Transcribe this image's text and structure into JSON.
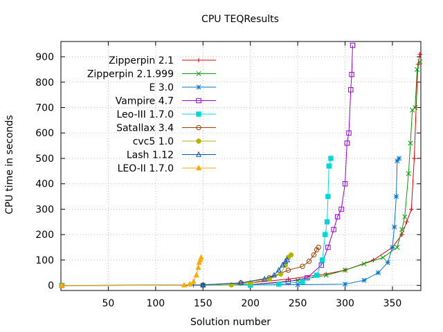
{
  "chart_data": {
    "type": "line",
    "title": "CPU TEQResults",
    "xlabel": "Solution number",
    "ylabel": "CPU time in seconds",
    "xlim": [
      0,
      380
    ],
    "ylim": [
      -20,
      960
    ],
    "xticks": [
      50,
      100,
      150,
      200,
      250,
      300,
      350
    ],
    "yticks": [
      0,
      100,
      200,
      300,
      400,
      500,
      600,
      700,
      800,
      900
    ],
    "grid": true,
    "legend_position": "top-left",
    "series": [
      {
        "name": "Zipperpin 2.1",
        "color": "#dc0000",
        "marker": "plus",
        "points": [
          [
            1,
            0
          ],
          [
            140,
            1
          ],
          [
            200,
            10
          ],
          [
            240,
            25
          ],
          [
            280,
            45
          ],
          [
            300,
            60
          ],
          [
            330,
            100
          ],
          [
            350,
            150
          ],
          [
            360,
            200
          ],
          [
            365,
            250
          ],
          [
            370,
            300
          ],
          [
            373,
            500
          ],
          [
            375,
            700
          ],
          [
            377,
            870
          ],
          [
            379,
            910
          ]
        ]
      },
      {
        "name": "Zipperpin 2.1.999",
        "color": "#009e00",
        "marker": "cross",
        "points": [
          [
            1,
            0
          ],
          [
            150,
            1
          ],
          [
            200,
            3
          ],
          [
            250,
            20
          ],
          [
            280,
            40
          ],
          [
            300,
            60
          ],
          [
            320,
            85
          ],
          [
            340,
            110
          ],
          [
            355,
            150
          ],
          [
            360,
            220
          ],
          [
            363,
            270
          ],
          [
            367,
            440
          ],
          [
            369,
            560
          ],
          [
            371,
            690
          ],
          [
            374,
            700
          ],
          [
            376,
            850
          ],
          [
            379,
            880
          ]
        ]
      },
      {
        "name": "E 3.0",
        "color": "#0072d0",
        "marker": "star",
        "points": [
          [
            1,
            0
          ],
          [
            150,
            1
          ],
          [
            250,
            3
          ],
          [
            300,
            5
          ],
          [
            320,
            20
          ],
          [
            335,
            50
          ],
          [
            345,
            90
          ],
          [
            350,
            150
          ],
          [
            352,
            230
          ],
          [
            354,
            350
          ],
          [
            355,
            490
          ],
          [
            357,
            500
          ]
        ]
      },
      {
        "name": "Vampire 4.7",
        "color": "#9400d3",
        "marker": "square",
        "points": [
          [
            1,
            0
          ],
          [
            200,
            2
          ],
          [
            240,
            15
          ],
          [
            260,
            30
          ],
          [
            275,
            80
          ],
          [
            282,
            150
          ],
          [
            288,
            220
          ],
          [
            292,
            270
          ],
          [
            296,
            300
          ],
          [
            300,
            400
          ],
          [
            302,
            560
          ],
          [
            304,
            600
          ],
          [
            306,
            770
          ],
          [
            307,
            830
          ],
          [
            308,
            945
          ]
        ]
      },
      {
        "name": "Leo-III 1.7.0",
        "color": "#00d8d8",
        "marker": "fsquare",
        "points": [
          [
            1,
            0
          ],
          [
            200,
            1
          ],
          [
            230,
            5
          ],
          [
            255,
            15
          ],
          [
            270,
            40
          ],
          [
            276,
            100
          ],
          [
            279,
            200
          ],
          [
            281,
            250
          ],
          [
            282,
            350
          ],
          [
            283,
            470
          ],
          [
            285,
            500
          ]
        ]
      },
      {
        "name": "Satallax 3.4",
        "color": "#a03c00",
        "marker": "circle",
        "points": [
          [
            1,
            0
          ],
          [
            150,
            1
          ],
          [
            190,
            10
          ],
          [
            220,
            30
          ],
          [
            240,
            60
          ],
          [
            255,
            75
          ],
          [
            262,
            95
          ],
          [
            267,
            120
          ],
          [
            270,
            140
          ],
          [
            272,
            150
          ]
        ]
      },
      {
        "name": "cvc5 1.0",
        "color": "#b4b400",
        "marker": "fcircle",
        "points": [
          [
            1,
            0
          ],
          [
            180,
            2
          ],
          [
            200,
            10
          ],
          [
            220,
            25
          ],
          [
            232,
            45
          ],
          [
            237,
            80
          ],
          [
            240,
            110
          ],
          [
            243,
            120
          ]
        ]
      },
      {
        "name": "Lash 1.12",
        "color": "#0052b8",
        "marker": "triangle",
        "points": [
          [
            1,
            0
          ],
          [
            150,
            2
          ],
          [
            190,
            10
          ],
          [
            215,
            25
          ],
          [
            225,
            40
          ],
          [
            230,
            60
          ],
          [
            234,
            80
          ],
          [
            237,
            95
          ],
          [
            239,
            100
          ]
        ]
      },
      {
        "name": "LEO-II 1.7.0",
        "color": "#ffaa00",
        "marker": "ftriangle",
        "points": [
          [
            1,
            0
          ],
          [
            130,
            1
          ],
          [
            136,
            5
          ],
          [
            140,
            15
          ],
          [
            143,
            40
          ],
          [
            145,
            70
          ],
          [
            146,
            90
          ],
          [
            147,
            100
          ],
          [
            148,
            110
          ]
        ]
      }
    ]
  }
}
